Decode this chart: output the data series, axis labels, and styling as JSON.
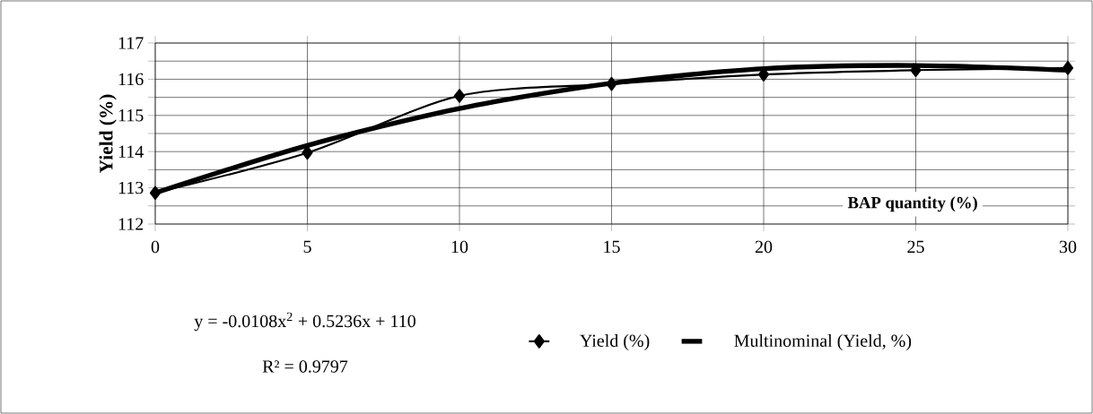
{
  "chart_data": {
    "type": "line",
    "xlabel": "BAP quantity (%)",
    "ylabel": "Yield (%)",
    "x": [
      0,
      5,
      10,
      15,
      20,
      25,
      30
    ],
    "series": [
      {
        "name": "Yield (%)",
        "color": "#000000",
        "marker": "diamond",
        "values": [
          112.86,
          113.97,
          115.54,
          115.87,
          116.13,
          116.25,
          116.31
        ]
      },
      {
        "name": "Multinominal (Yield, %)",
        "color": "#000000",
        "marker": "none",
        "values": [
          112.86,
          114.17,
          115.19,
          115.89,
          116.29,
          116.38,
          116.25
        ]
      }
    ],
    "xlim": [
      0,
      30
    ],
    "xticks": [
      0,
      5,
      10,
      15,
      20,
      25,
      30
    ],
    "ylim": [
      112,
      117
    ],
    "yticks": [
      112,
      {
        "value": 112.5,
        "label": null
      },
      113,
      {
        "value": 113.5,
        "label": null
      },
      114,
      {
        "value": 114.5,
        "label": null
      },
      115,
      {
        "value": 115.5,
        "label": null
      },
      116,
      {
        "value": 116.5,
        "label": null
      },
      117
    ],
    "grid": true,
    "legend": "bottom",
    "annotations": [
      "y = -0.0108x$^{2}$ + 0.5236x + 110",
      "R² = 0.9797"
    ]
  }
}
